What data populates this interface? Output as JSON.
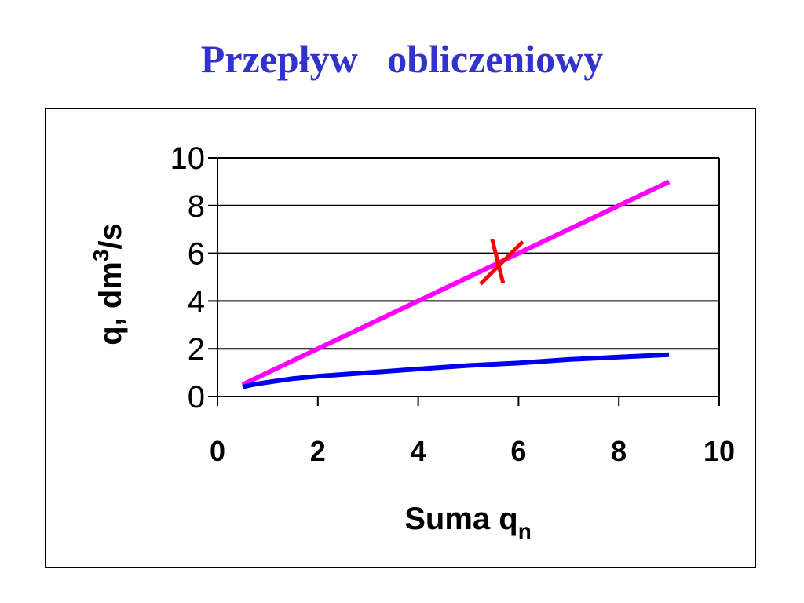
{
  "slide": {
    "title": "Przepływ   obliczeniowy"
  },
  "colors": {
    "title": "#3333cc",
    "series_upper": "#ff00ff",
    "series_lower": "#0000ee",
    "marker": "#ff0000"
  },
  "chart_data": {
    "type": "line",
    "xlabel": {
      "main": "Suma q",
      "subscript": "n"
    },
    "ylabel": {
      "main": "q, dm",
      "superscript": "3",
      "suffix": "/s"
    },
    "xlim": [
      0,
      10
    ],
    "ylim": [
      0,
      10
    ],
    "xticks": [
      0,
      2,
      4,
      6,
      8,
      10
    ],
    "yticks": [
      0,
      2,
      4,
      6,
      8,
      10
    ],
    "grid": "horizontal",
    "legend": "none",
    "series": [
      {
        "color": "#ff00ff",
        "x": [
          0.5,
          1,
          1.5,
          2,
          3,
          3.5,
          4,
          5,
          6,
          7,
          7.5,
          8,
          9
        ],
        "y": [
          0.5,
          1.0,
          1.5,
          2.0,
          3.0,
          3.5,
          4.0,
          5.0,
          6.0,
          7.0,
          7.5,
          8.0,
          9.0
        ]
      },
      {
        "color": "#0000ee",
        "x": [
          0.5,
          0.7,
          1,
          1.5,
          2,
          3,
          4,
          5,
          6,
          7,
          8,
          9
        ],
        "y": [
          0.4,
          0.5,
          0.6,
          0.75,
          0.85,
          1.0,
          1.15,
          1.3,
          1.4,
          1.55,
          1.65,
          1.75
        ]
      }
    ],
    "markers": [
      {
        "shape": "x",
        "x": 5.6,
        "y": 5.6,
        "color": "#ff0000"
      }
    ]
  }
}
